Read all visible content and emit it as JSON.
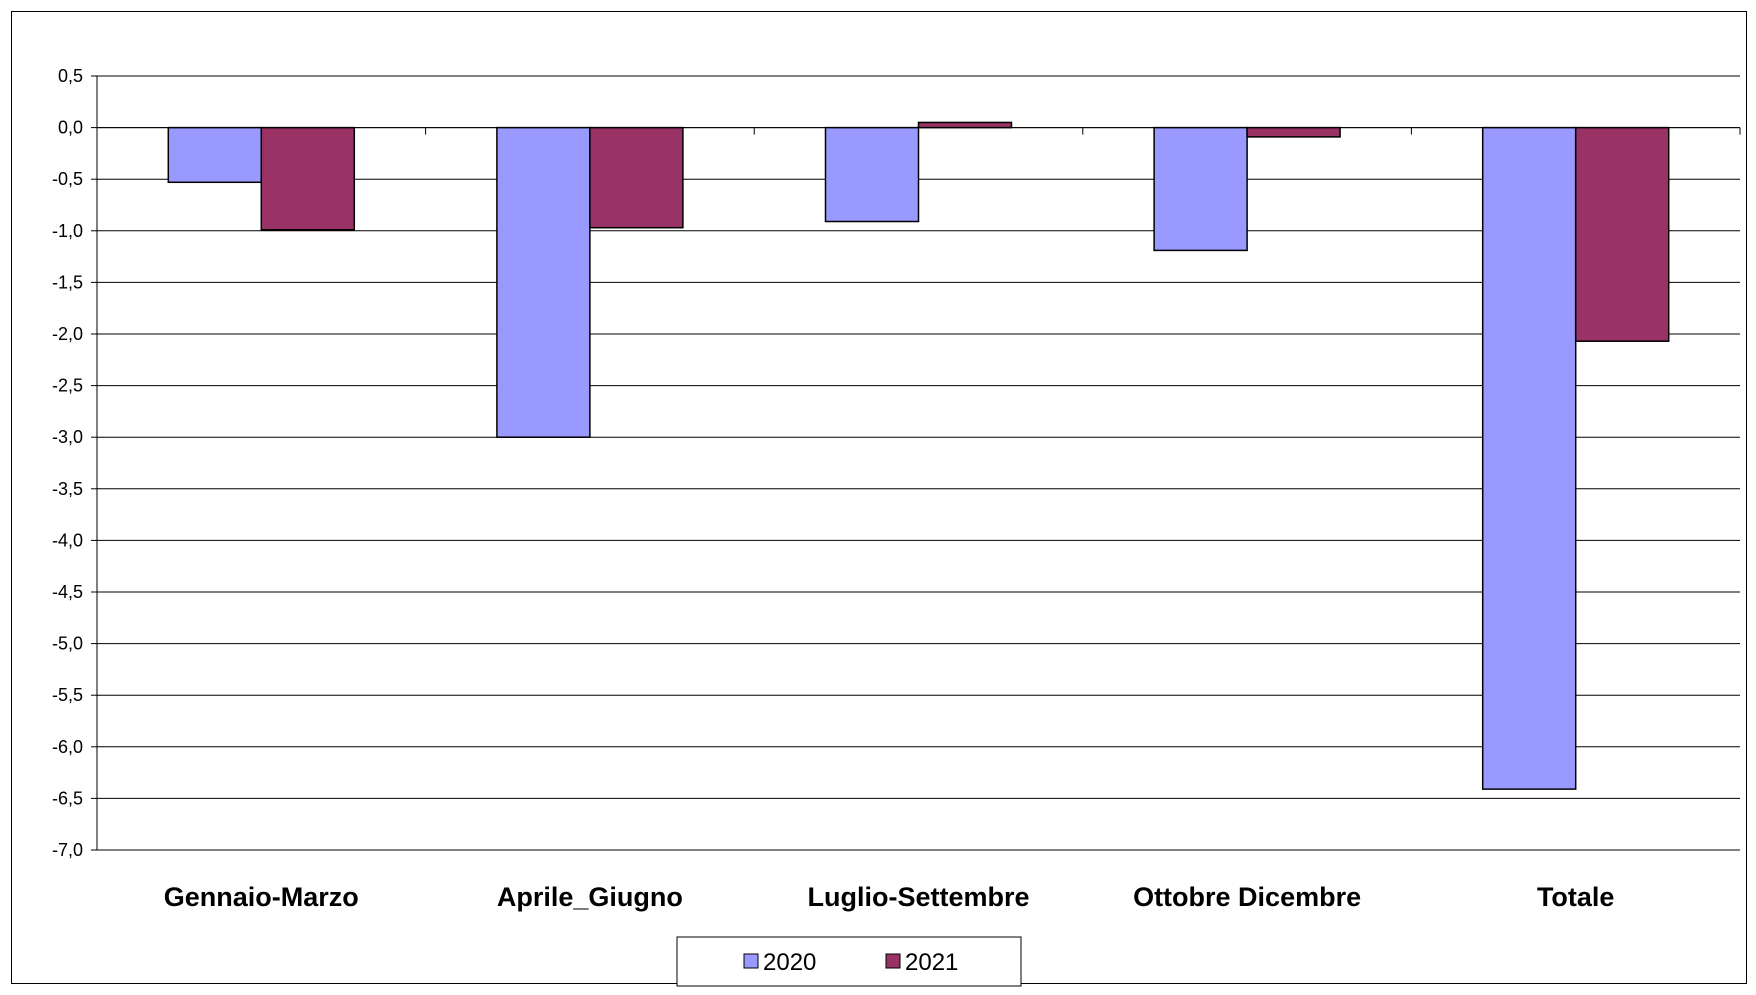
{
  "chart_data": {
    "type": "bar",
    "categories": [
      "Gennaio-Marzo",
      "Aprile_Giugno",
      "Luglio-Settembre",
      "Ottobre Dicembre",
      "Totale"
    ],
    "series": [
      {
        "name": "2020",
        "values": [
          -0.53,
          -3.0,
          -0.91,
          -1.19,
          -6.41
        ],
        "color": "#9999ff"
      },
      {
        "name": "2021",
        "values": [
          -0.99,
          -0.97,
          0.05,
          -0.09,
          -2.07
        ],
        "color": "#993366"
      }
    ],
    "ylim": [
      -7.0,
      0.5
    ],
    "yticks": [
      "0,5",
      "0,0",
      "-0,5",
      "-1,0",
      "-1,5",
      "-2,0",
      "-2,5",
      "-3,0",
      "-3,5",
      "-4,0",
      "-4,5",
      "-5,0",
      "-5,5",
      "-6,0",
      "-6,5",
      "-7,0"
    ],
    "grid": true,
    "legend": "bottom",
    "title": "",
    "xlabel": "",
    "ylabel": ""
  }
}
